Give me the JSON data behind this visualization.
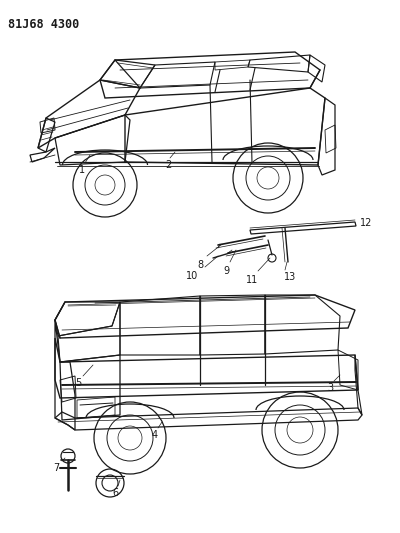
{
  "title": "81J68 4300",
  "bg": "#ffffff",
  "lc": "#1a1a1a",
  "fig_w": 4.0,
  "fig_h": 5.33,
  "dpi": 100
}
